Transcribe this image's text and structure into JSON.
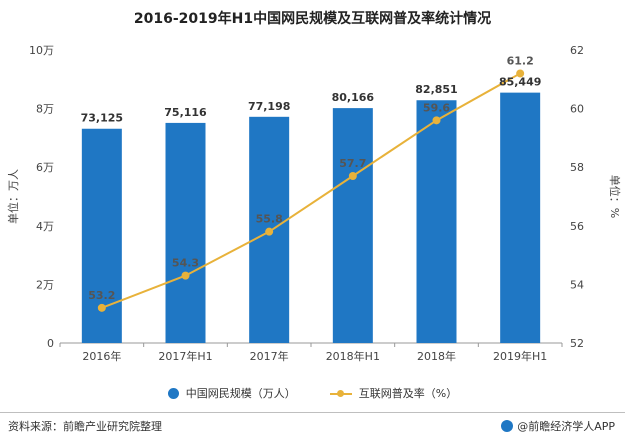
{
  "title": "2016-2019年H1中国网民规模及互联网普及率统计情况",
  "chart_data": {
    "type": "bar",
    "title": "2016-2019年H1中国网民规模及互联网普及率统计情况",
    "categories": [
      "2016年",
      "2017年H1",
      "2017年",
      "2018年H1",
      "2018年",
      "2019年H1"
    ],
    "series": [
      {
        "name": "中国网民规模（万人）",
        "kind": "bar",
        "axis": "left",
        "values": [
          73125,
          75116,
          77198,
          80166,
          82851,
          85449
        ],
        "labels": [
          "73,125",
          "75,116",
          "77,198",
          "80,166",
          "82,851",
          "85,449"
        ]
      },
      {
        "name": "互联网普及率（%）",
        "kind": "line",
        "axis": "right",
        "values": [
          53.2,
          54.3,
          55.8,
          57.7,
          59.6,
          61.2
        ],
        "labels": [
          "53.2",
          "54.3",
          "55.8",
          "57.7",
          "59.6",
          "61.2"
        ]
      }
    ],
    "ylabel": "单位：万人",
    "y2label": "单位：%",
    "ylim": [
      0,
      100000
    ],
    "y2lim": [
      52,
      62
    ],
    "yticks": [
      0,
      20000,
      40000,
      60000,
      80000,
      100000
    ],
    "ytick_labels": [
      "0",
      "2万",
      "4万",
      "6万",
      "8万",
      "10万"
    ],
    "y2ticks": [
      52,
      54,
      56,
      58,
      60,
      62
    ],
    "y2tick_labels": [
      "52",
      "54",
      "56",
      "58",
      "60",
      "62"
    ],
    "legend_position": "bottom-center",
    "grid": false
  },
  "colors": {
    "bar": "#1f77c4",
    "line": "#e8b23a"
  },
  "footer": {
    "source": "资料来源：前瞻产业研究院整理",
    "brand": "@前瞻经济学人APP"
  },
  "watermark": "前瞻产业研究院"
}
